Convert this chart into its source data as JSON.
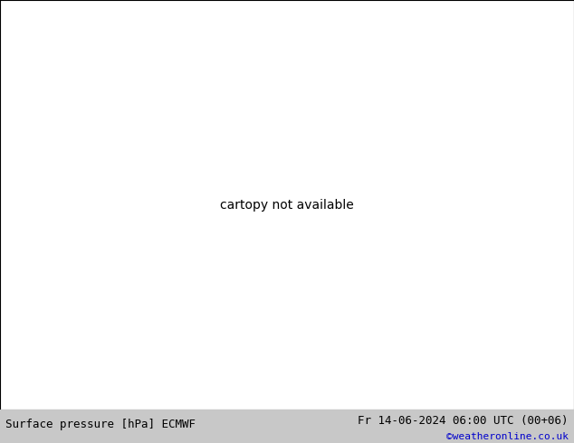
{
  "title_left": "Surface pressure [hPa] ECMWF",
  "title_right": "Fr 14-06-2024 06:00 UTC (00+06)",
  "copyright": "©weatheronline.co.uk",
  "bg_color": "#e0e0e0",
  "land_color": "#b8e090",
  "sea_color": "#e0e0e0",
  "border_color": "#333333",
  "contour_color_low": "#0000bb",
  "contour_color_high": "#cc0000",
  "contour_color_1013": "#000000",
  "bottom_bar_color": "#c8c8c8",
  "copyright_color": "#0000cc",
  "lon_min": 2.0,
  "lon_max": 35.0,
  "lat_min": 54.0,
  "lat_max": 72.0
}
